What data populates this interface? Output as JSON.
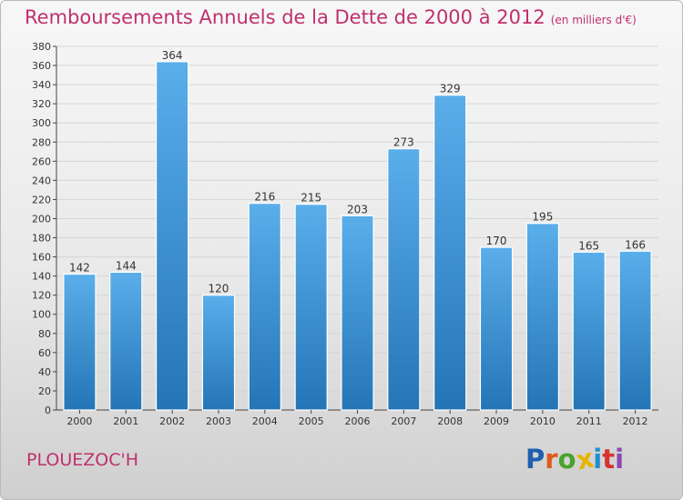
{
  "title": "Remboursements Annuels de la Dette de 2000 à 2012",
  "unit": "(en milliers d'€)",
  "commune": "PLOUEZOC'H",
  "logo": {
    "letters": [
      "P",
      "r",
      "o",
      "x",
      "i",
      "t",
      "i"
    ],
    "colors": [
      "#1f5fae",
      "#e05a1c",
      "#4aa22b",
      "#e8b400",
      "#1f8fd0",
      "#d8322e",
      "#8d46b0"
    ]
  },
  "colors": {
    "bar_top": "#5aaeea",
    "bar_bottom": "#2475b6",
    "title": "#c0306c"
  },
  "chart_data": {
    "type": "bar",
    "categories": [
      "2000",
      "2001",
      "2002",
      "2003",
      "2004",
      "2005",
      "2006",
      "2007",
      "2008",
      "2009",
      "2010",
      "2011",
      "2012"
    ],
    "values": [
      142,
      144,
      364,
      120,
      216,
      215,
      203,
      273,
      329,
      170,
      195,
      165,
      166
    ],
    "data_labels": [
      "142",
      "144",
      "364",
      "120",
      "216",
      "215",
      "203",
      "273",
      "329",
      "170",
      "195",
      "165",
      "166"
    ],
    "yticks": [
      "0",
      "20",
      "40",
      "60",
      "80",
      "100",
      "120",
      "140",
      "160",
      "180",
      "200",
      "220",
      "240",
      "260",
      "280",
      "300",
      "320",
      "340",
      "360",
      "380"
    ],
    "ylim": [
      0,
      380
    ],
    "grid": true
  }
}
